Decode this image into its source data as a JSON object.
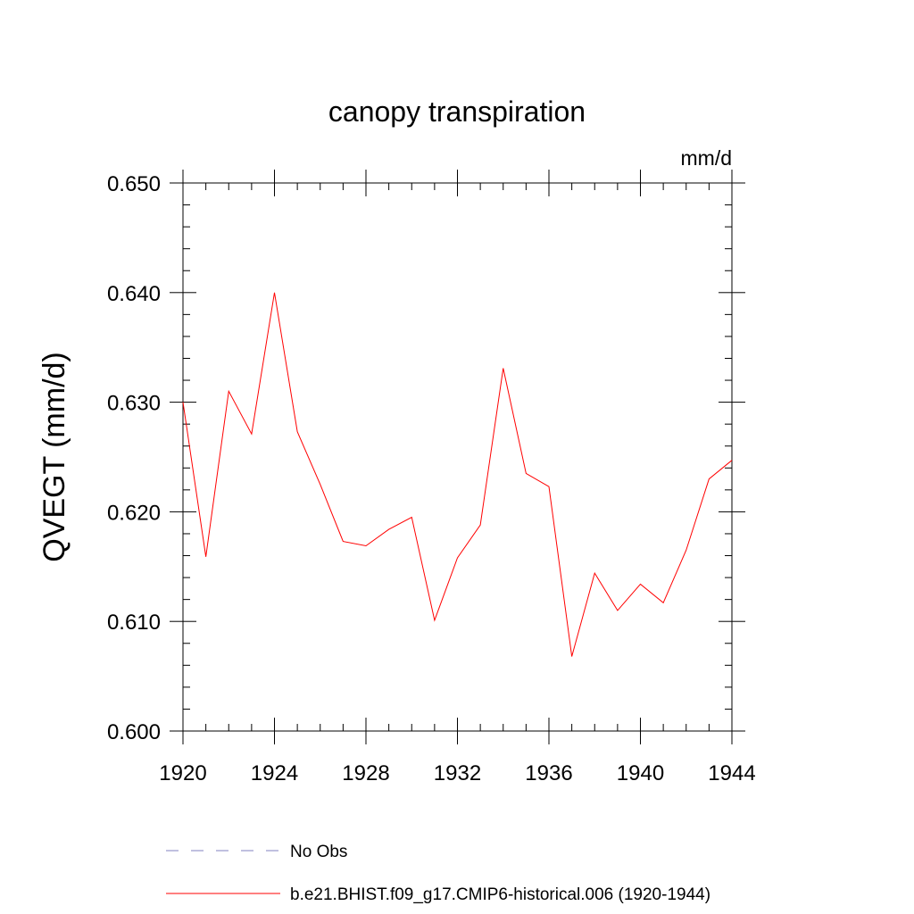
{
  "chart_data": {
    "type": "line",
    "title": "canopy transpiration",
    "units": "mm/d",
    "ylabel": "QVEGT  (mm/d)",
    "xlabel": "",
    "xlim": [
      1920,
      1944
    ],
    "ylim": [
      0.6,
      0.65
    ],
    "x_ticks": [
      "1920",
      "1924",
      "1928",
      "1932",
      "1936",
      "1940",
      "1944"
    ],
    "y_ticks": [
      "0.600",
      "0.610",
      "0.620",
      "0.630",
      "0.640",
      "0.650"
    ],
    "grid": false,
    "legend_position": "bottom",
    "series": [
      {
        "name": "b.e21.BHIST.f09_g17.CMIP6-historical.006 (1920-1944)",
        "color": "#ff0000",
        "style": "solid",
        "x": [
          1920,
          1921,
          1922,
          1923,
          1924,
          1925,
          1926,
          1927,
          1928,
          1929,
          1930,
          1931,
          1932,
          1933,
          1934,
          1935,
          1936,
          1937,
          1938,
          1939,
          1940,
          1941,
          1942,
          1943,
          1944
        ],
        "y": [
          0.63,
          0.6159,
          0.631,
          0.6271,
          0.64,
          0.6273,
          0.6225,
          0.6173,
          0.6169,
          0.6184,
          0.6195,
          0.6101,
          0.6158,
          0.6188,
          0.6331,
          0.6235,
          0.6223,
          0.6068,
          0.6144,
          0.611,
          0.6134,
          0.6117,
          0.6165,
          0.623,
          0.6247
        ]
      }
    ],
    "legend": [
      {
        "label": "No Obs",
        "color": "#8080c0",
        "style": "dashed"
      },
      {
        "label": "b.e21.BHIST.f09_g17.CMIP6-historical.006 (1920-1944)",
        "color": "#ff0000",
        "style": "solid"
      }
    ]
  }
}
